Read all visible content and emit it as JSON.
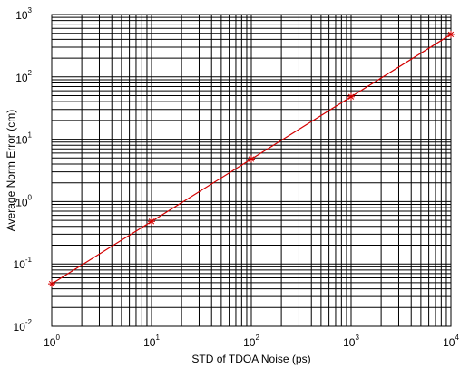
{
  "chart_data": {
    "type": "line",
    "title": "",
    "xlabel": "STD of TDOA Noise (ps)",
    "ylabel": "Average Norm Error (cm)",
    "x_scale": "log",
    "y_scale": "log",
    "xlim": [
      1,
      10000
    ],
    "ylim": [
      0.01,
      1000
    ],
    "grid": true,
    "x_ticks": [
      {
        "base": "10",
        "exp": "0"
      },
      {
        "base": "10",
        "exp": "1"
      },
      {
        "base": "10",
        "exp": "2"
      },
      {
        "base": "10",
        "exp": "3"
      },
      {
        "base": "10",
        "exp": "4"
      }
    ],
    "y_ticks": [
      {
        "base": "10",
        "exp": "-2"
      },
      {
        "base": "10",
        "exp": "-1"
      },
      {
        "base": "10",
        "exp": "0"
      },
      {
        "base": "10",
        "exp": "1"
      },
      {
        "base": "10",
        "exp": "2"
      },
      {
        "base": "10",
        "exp": "3"
      }
    ],
    "series": [
      {
        "color": "#d40000",
        "marker": "star",
        "x": [
          1,
          10,
          100,
          1000,
          10000
        ],
        "y": [
          0.048,
          0.48,
          4.8,
          48,
          480
        ]
      }
    ]
  }
}
